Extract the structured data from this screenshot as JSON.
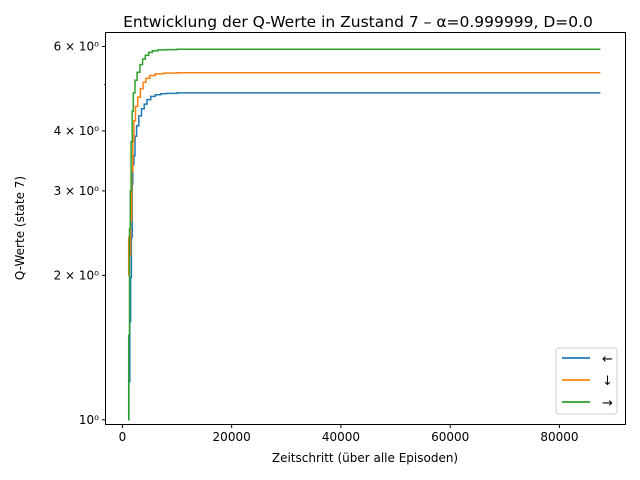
{
  "chart_data": {
    "type": "line",
    "title": "Entwicklung der Q-Werte in Zustand 7 – α=0.999999, D=0.0",
    "xlabel": "Zeitschritt (über alle Episoden)",
    "ylabel": "Q-Werte (state 7)",
    "yscale": "log",
    "xlim": [
      -3000,
      92000
    ],
    "ylim": [
      0.98,
      6.4
    ],
    "xticks": [
      0,
      20000,
      40000,
      60000,
      80000
    ],
    "xtick_labels": [
      "0",
      "20000",
      "40000",
      "60000",
      "80000"
    ],
    "yticks": [
      1,
      2,
      3,
      4,
      6
    ],
    "ytick_labels": [
      "10⁰",
      "2 × 10⁰",
      "3 × 10⁰",
      "4 × 10⁰",
      "6 × 10⁰"
    ],
    "grid": false,
    "legend_position": "lower right",
    "series": [
      {
        "name": "←",
        "color": "#1f77b4",
        "points": [
          [
            1100,
            1.0
          ],
          [
            1200,
            1.2
          ],
          [
            1350,
            1.6
          ],
          [
            1500,
            1.98
          ],
          [
            1650,
            2.4
          ],
          [
            1800,
            3.1
          ],
          [
            1900,
            3.4
          ],
          [
            2100,
            3.55
          ],
          [
            2300,
            3.9
          ],
          [
            2600,
            4.1
          ],
          [
            3000,
            4.3
          ],
          [
            3500,
            4.45
          ],
          [
            4000,
            4.55
          ],
          [
            4500,
            4.65
          ],
          [
            5200,
            4.72
          ],
          [
            6000,
            4.76
          ],
          [
            7000,
            4.78
          ],
          [
            8000,
            4.79
          ],
          [
            10000,
            4.8
          ],
          [
            87500,
            4.8
          ]
        ]
      },
      {
        "name": "↓",
        "color": "#ff7f0e",
        "points": [
          [
            1100,
            2.0
          ],
          [
            1150,
            2.4
          ],
          [
            1300,
            2.2
          ],
          [
            1500,
            2.6
          ],
          [
            1700,
            3.3
          ],
          [
            1900,
            3.8
          ],
          [
            2100,
            4.2
          ],
          [
            2400,
            4.5
          ],
          [
            2800,
            4.7
          ],
          [
            3300,
            4.9
          ],
          [
            3800,
            5.05
          ],
          [
            4300,
            5.15
          ],
          [
            5000,
            5.22
          ],
          [
            6000,
            5.26
          ],
          [
            7500,
            5.28
          ],
          [
            10000,
            5.29
          ],
          [
            87500,
            5.29
          ]
        ]
      },
      {
        "name": "→",
        "color": "#2ca02c",
        "points": [
          [
            1000,
            1.0
          ],
          [
            1150,
            1.5
          ],
          [
            1300,
            2.5
          ],
          [
            1450,
            3.0
          ],
          [
            1600,
            3.8
          ],
          [
            1800,
            4.4
          ],
          [
            2000,
            4.8
          ],
          [
            2300,
            5.1
          ],
          [
            2700,
            5.3
          ],
          [
            3200,
            5.5
          ],
          [
            3700,
            5.65
          ],
          [
            4200,
            5.75
          ],
          [
            4800,
            5.83
          ],
          [
            5500,
            5.88
          ],
          [
            6500,
            5.9
          ],
          [
            8000,
            5.91
          ],
          [
            10000,
            5.92
          ],
          [
            87500,
            5.92
          ]
        ]
      }
    ]
  }
}
